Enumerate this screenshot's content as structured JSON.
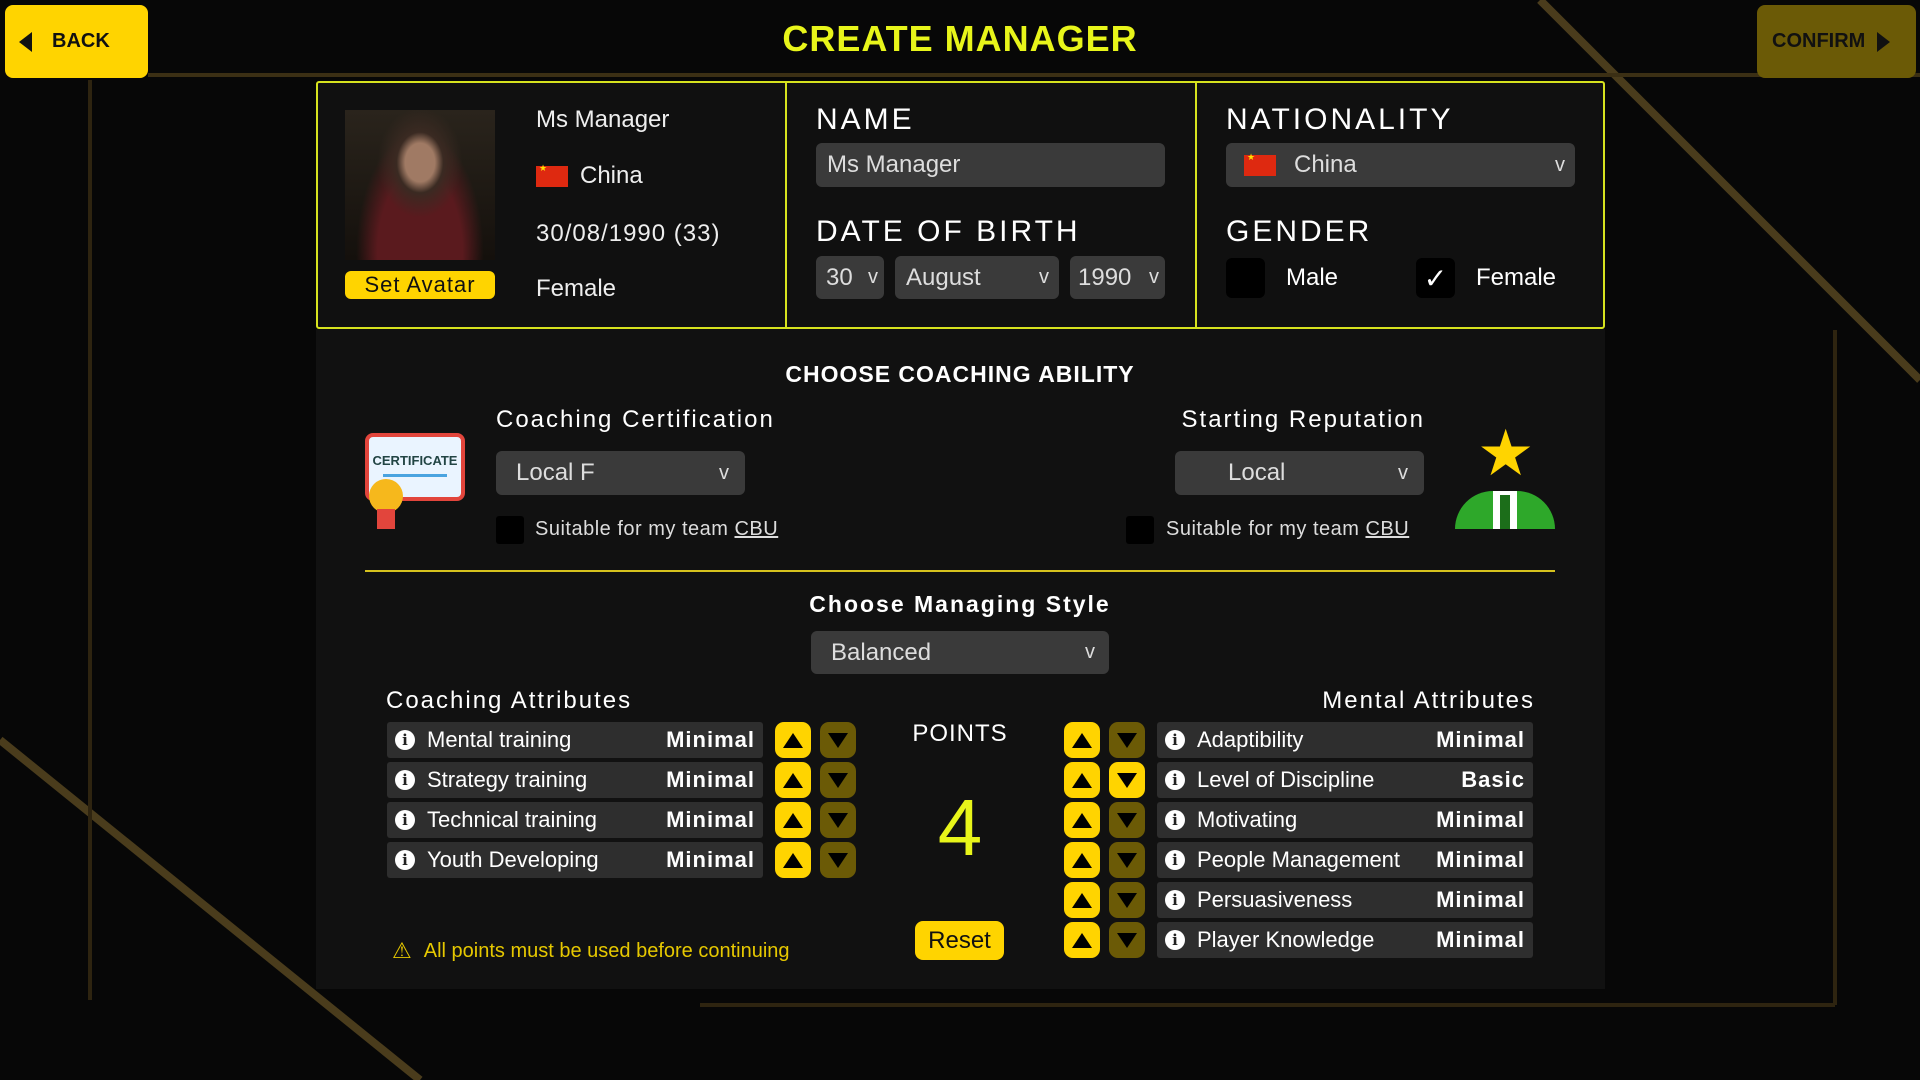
{
  "header": {
    "back_label": "BACK",
    "title": "CREATE MANAGER",
    "confirm_label": "CONFIRM"
  },
  "colors": {
    "accent": "#ffd400",
    "title": "#e8f51a",
    "confirm_disabled": "#6b5a06",
    "panel_border": "#d6e21e"
  },
  "summary": {
    "name": "Ms Manager",
    "nationality": "China",
    "dob": "30/08/1990 (33)",
    "gender": "Female",
    "set_avatar_label": "Set Avatar"
  },
  "form": {
    "name_label": "NAME",
    "name_value": "Ms Manager",
    "dob_label": "DATE OF BIRTH",
    "day": "30",
    "month": "August",
    "year": "1990",
    "nationality_label": "NATIONALITY",
    "nationality_value": "China",
    "gender_label": "GENDER",
    "male_label": "Male",
    "female_label": "Female",
    "male_checked": false,
    "female_checked": true
  },
  "coaching": {
    "title": "CHOOSE COACHING ABILITY",
    "cert_label": "Coaching Certification",
    "cert_value": "Local F",
    "cert_icon_text": "CERTIFICATE",
    "rep_label": "Starting Reputation",
    "rep_value": "Local",
    "suitable_label": "Suitable for my team",
    "cbu": "CBU"
  },
  "style": {
    "title": "Choose Managing Style",
    "value": "Balanced"
  },
  "coaching_attrs": {
    "title": "Coaching Attributes",
    "items": [
      {
        "name": "Mental training",
        "value": "Minimal"
      },
      {
        "name": "Strategy training",
        "value": "Minimal"
      },
      {
        "name": "Technical training",
        "value": "Minimal"
      },
      {
        "name": "Youth Developing",
        "value": "Minimal"
      }
    ]
  },
  "mental_attrs": {
    "title": "Mental Attributes",
    "items": [
      {
        "name": "Adaptibility",
        "value": "Minimal"
      },
      {
        "name": "Level of Discipline",
        "value": "Basic"
      },
      {
        "name": "Motivating",
        "value": "Minimal"
      },
      {
        "name": "People Management",
        "value": "Minimal"
      },
      {
        "name": "Persuasiveness",
        "value": "Minimal"
      },
      {
        "name": "Player Knowledge",
        "value": "Minimal"
      }
    ]
  },
  "points": {
    "label": "POINTS",
    "value": "4",
    "reset_label": "Reset"
  },
  "warning": "All points must be used before continuing"
}
